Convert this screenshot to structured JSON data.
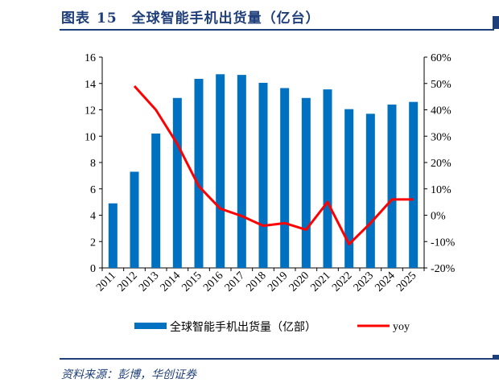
{
  "header": {
    "label": "图表",
    "number": "15",
    "title": "全球智能手机出货量（亿台）"
  },
  "source": "资料来源：彭博，华创证券",
  "chart_data": {
    "type": "bar+line",
    "categories": [
      "2011",
      "2012",
      "2013",
      "2014",
      "2015",
      "2016",
      "2017",
      "2018",
      "2019",
      "2020",
      "2021",
      "2022",
      "2023",
      "2024",
      "2025"
    ],
    "series": [
      {
        "name": "全球智能手机出货量（亿部）",
        "type": "bar",
        "axis": "left",
        "color": "#0070c0",
        "values": [
          4.9,
          7.3,
          10.2,
          12.9,
          14.35,
          14.7,
          14.65,
          14.05,
          13.65,
          12.9,
          13.55,
          12.05,
          11.7,
          12.4,
          12.6
        ]
      },
      {
        "name": "yoy",
        "type": "line",
        "axis": "right",
        "color": "#ff0000",
        "values": [
          null,
          49,
          40,
          27,
          11,
          2.5,
          -0.3,
          -4,
          -3,
          -5.5,
          5,
          -11,
          -3,
          6,
          6
        ]
      }
    ],
    "left_axis": {
      "ylim": [
        0,
        16
      ],
      "ticks": [
        "0",
        "2",
        "4",
        "6",
        "8",
        "10",
        "12",
        "14",
        "16"
      ]
    },
    "right_axis": {
      "ylim": [
        -20,
        60
      ],
      "ticks": [
        "-20%",
        "-10%",
        "0%",
        "10%",
        "20%",
        "30%",
        "40%",
        "50%",
        "60%"
      ]
    },
    "legend": "bottom",
    "grid": false
  }
}
